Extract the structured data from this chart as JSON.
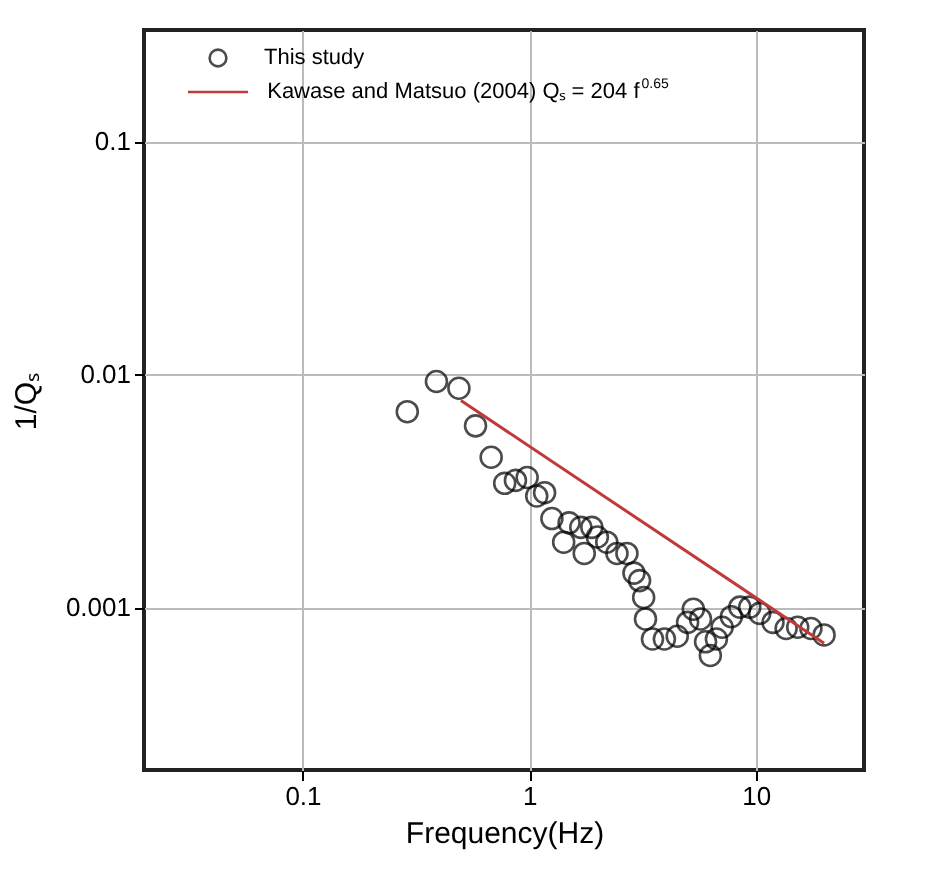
{
  "chart_data": {
    "type": "scatter",
    "xlabel": "Frequency(Hz)",
    "ylabel": "1/Qₛ",
    "log": "xy",
    "grid": true,
    "legend": "top left",
    "marker": "circle",
    "xlim": [
      0.02,
      30
    ],
    "ylim": [
      0.0002,
      0.3
    ],
    "xticks": [
      0.1,
      1,
      10
    ],
    "yticks": [
      0.001,
      0.01,
      0.1
    ],
    "series": [
      {
        "name": "This study",
        "color": "#000000",
        "x": [
          0.29,
          0.39,
          0.49,
          0.58,
          0.68,
          0.78,
          0.87,
          0.98,
          1.08,
          1.17,
          1.26,
          1.42,
          1.5,
          1.69,
          1.75,
          1.89,
          2.0,
          2.2,
          2.44,
          2.7,
          2.9,
          3.07,
          3.2,
          3.26,
          3.5,
          3.95,
          4.5,
          5.0,
          5.3,
          5.7,
          6.0,
          6.3,
          6.7,
          7.1,
          7.8,
          8.5,
          9.4,
          10.4,
          11.9,
          13.6,
          15.3,
          17.5,
          20
        ],
        "values": [
          0.0069,
          0.0093,
          0.0087,
          0.006,
          0.0044,
          0.0034,
          0.0035,
          0.0036,
          0.003,
          0.0031,
          0.0024,
          0.0019,
          0.0023,
          0.0022,
          0.0017,
          0.0022,
          0.002,
          0.0019,
          0.0017,
          0.0017,
          0.0014,
          0.0013,
          0.0011,
          0.00089,
          0.00073,
          0.00073,
          0.00075,
          0.00086,
          0.00098,
          0.00089,
          0.00071,
          0.00062,
          0.00073,
          0.00082,
          0.00091,
          0.001,
          0.001,
          0.00094,
          0.00086,
          0.00081,
          0.00082,
          0.00081,
          0.00076
        ]
      },
      {
        "name": "Kawase and Matsuo (2004) Qₛ = 204 f$^{0.65}$",
        "type": "line",
        "marker": "none",
        "line_style": "solid",
        "color": "#c0393b",
        "x": [
          0.5,
          20
        ],
        "values": [
          0.0077,
          0.0007
        ]
      }
    ]
  }
}
